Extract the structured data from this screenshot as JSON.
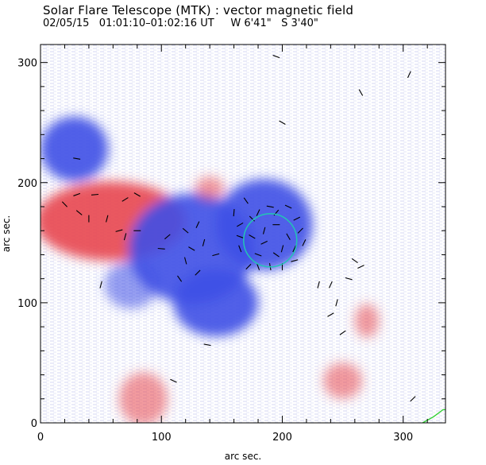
{
  "header": {
    "title": "Solar Flare Telescope (MTK) : vector magnetic field",
    "date": "02/05/15",
    "time_range": "01:01:10–01:02:16 UT",
    "position_w": "W 6'41\"",
    "position_s": "S 3'40\""
  },
  "chart_data": {
    "type": "map",
    "title": "Solar Flare Telescope (MTK) : vector magnetic field",
    "xlabel": "arc sec.",
    "ylabel": "arc sec.",
    "xlim": [
      0,
      335
    ],
    "ylim": [
      0,
      315
    ],
    "x_ticks": [
      0,
      100,
      200,
      300
    ],
    "y_ticks": [
      0,
      100,
      200,
      300
    ],
    "colors": {
      "positive_polarity": "#e8474f",
      "negative_polarity": "#3f4fe6",
      "sunspot_contour": "#22c5b5",
      "limb_contour": "#2bd12b",
      "transverse_vectors": "#000000"
    },
    "polarity_regions": [
      {
        "polarity": "negative",
        "x": 28,
        "y": 228,
        "rx": 28,
        "ry": 27
      },
      {
        "polarity": "positive",
        "x": 58,
        "y": 168,
        "rx": 62,
        "ry": 33
      },
      {
        "polarity": "negative",
        "x": 125,
        "y": 145,
        "rx": 52,
        "ry": 46
      },
      {
        "polarity": "negative",
        "x": 185,
        "y": 165,
        "rx": 40,
        "ry": 38
      },
      {
        "polarity": "negative",
        "x": 75,
        "y": 115,
        "rx": 22,
        "ry": 20
      },
      {
        "polarity": "negative",
        "x": 145,
        "y": 100,
        "rx": 35,
        "ry": 28
      },
      {
        "polarity": "positive",
        "x": 140,
        "y": 195,
        "rx": 12,
        "ry": 10
      },
      {
        "polarity": "positive",
        "x": 85,
        "y": 20,
        "rx": 20,
        "ry": 22
      },
      {
        "polarity": "positive",
        "x": 250,
        "y": 35,
        "rx": 16,
        "ry": 15
      },
      {
        "polarity": "positive",
        "x": 270,
        "y": 85,
        "rx": 10,
        "ry": 14
      }
    ],
    "contours": [
      {
        "name": "sunspot-umbra",
        "x": 190,
        "y": 152,
        "r": 22
      },
      {
        "name": "limb",
        "points": [
          [
            316,
            0
          ],
          [
            325,
            5
          ],
          [
            333,
            11
          ],
          [
            335,
            11
          ]
        ]
      }
    ],
    "vectors": [
      [
        20,
        182
      ],
      [
        32,
        175
      ],
      [
        40,
        170
      ],
      [
        30,
        190
      ],
      [
        45,
        190
      ],
      [
        70,
        186
      ],
      [
        55,
        170
      ],
      [
        65,
        160
      ],
      [
        70,
        155
      ],
      [
        80,
        160
      ],
      [
        80,
        190
      ],
      [
        100,
        145
      ],
      [
        105,
        155
      ],
      [
        120,
        160
      ],
      [
        125,
        145
      ],
      [
        130,
        165
      ],
      [
        135,
        150
      ],
      [
        120,
        135
      ],
      [
        115,
        120
      ],
      [
        130,
        125
      ],
      [
        145,
        140
      ],
      [
        160,
        175
      ],
      [
        165,
        165
      ],
      [
        170,
        185
      ],
      [
        175,
        170
      ],
      [
        180,
        175
      ],
      [
        190,
        180
      ],
      [
        195,
        175
      ],
      [
        205,
        180
      ],
      [
        212,
        170
      ],
      [
        175,
        155
      ],
      [
        180,
        140
      ],
      [
        185,
        150
      ],
      [
        190,
        130
      ],
      [
        195,
        140
      ],
      [
        200,
        145
      ],
      [
        205,
        155
      ],
      [
        210,
        145
      ],
      [
        215,
        160
      ],
      [
        218,
        150
      ],
      [
        172,
        130
      ],
      [
        180,
        130
      ],
      [
        185,
        160
      ],
      [
        195,
        165
      ],
      [
        200,
        130
      ],
      [
        210,
        135
      ],
      [
        165,
        145
      ],
      [
        165,
        155
      ],
      [
        230,
        115
      ],
      [
        240,
        115
      ],
      [
        245,
        100
      ],
      [
        255,
        120
      ],
      [
        260,
        135
      ],
      [
        265,
        130
      ],
      [
        250,
        75
      ],
      [
        200,
        250
      ],
      [
        195,
        305
      ],
      [
        305,
        290
      ],
      [
        265,
        275
      ],
      [
        240,
        90
      ],
      [
        138,
        65
      ],
      [
        110,
        35
      ],
      [
        308,
        20
      ],
      [
        30,
        220
      ],
      [
        50,
        115
      ]
    ]
  }
}
